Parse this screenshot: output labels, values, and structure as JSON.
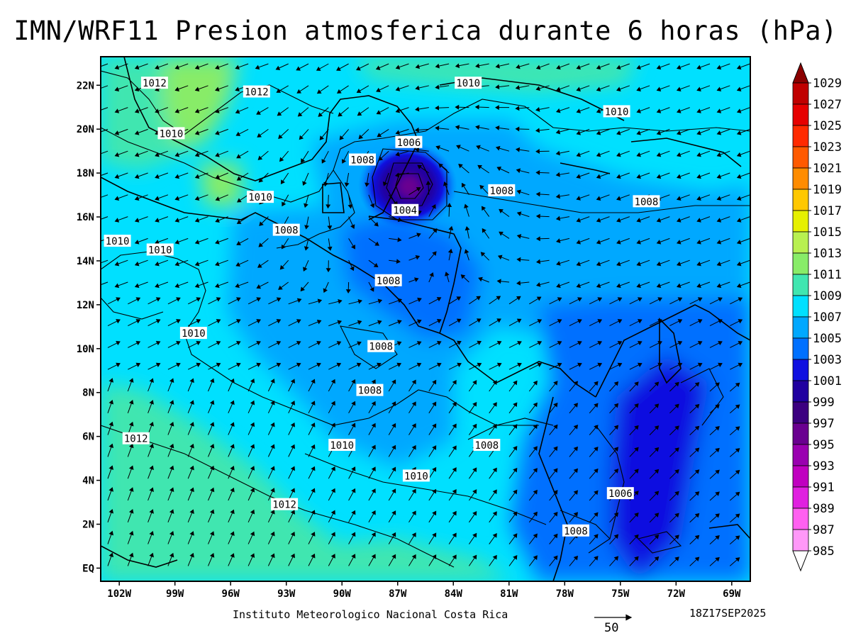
{
  "title": "IMN/WRF11 Presion atmosferica durante 6 horas (hPa)",
  "institution": "Instituto Meteorologico Nacional Costa Rica",
  "timestamp": "18Z17SEP2025",
  "vector_reference": "50",
  "map": {
    "lon_range": [
      -103,
      -68
    ],
    "lat_range": [
      -0.6,
      23.3
    ],
    "lon_ticks": [
      {
        "lon": -102,
        "label": "102W"
      },
      {
        "lon": -99,
        "label": "99W"
      },
      {
        "lon": -96,
        "label": "96W"
      },
      {
        "lon": -93,
        "label": "93W"
      },
      {
        "lon": -90,
        "label": "90W"
      },
      {
        "lon": -87,
        "label": "87W"
      },
      {
        "lon": -84,
        "label": "84W"
      },
      {
        "lon": -81,
        "label": "81W"
      },
      {
        "lon": -78,
        "label": "78W"
      },
      {
        "lon": -75,
        "label": "75W"
      },
      {
        "lon": -72,
        "label": "72W"
      },
      {
        "lon": -69,
        "label": "69W"
      }
    ],
    "lat_ticks": [
      {
        "lat": 22,
        "label": "22N"
      },
      {
        "lat": 20,
        "label": "20N"
      },
      {
        "lat": 18,
        "label": "18N"
      },
      {
        "lat": 16,
        "label": "16N"
      },
      {
        "lat": 14,
        "label": "14N"
      },
      {
        "lat": 12,
        "label": "12N"
      },
      {
        "lat": 10,
        "label": "10N"
      },
      {
        "lat": 8,
        "label": "8N"
      },
      {
        "lat": 6,
        "label": "6N"
      },
      {
        "lat": 4,
        "label": "4N"
      },
      {
        "lat": 2,
        "label": "2N"
      },
      {
        "lat": 0,
        "label": "EQ"
      }
    ],
    "pressure_min": {
      "lon": -86.5,
      "lat": 17.4,
      "value_hpa": 993
    },
    "contour_labels": [
      {
        "text": "1012",
        "lon": -100.1,
        "lat": 22.1
      },
      {
        "text": "1012",
        "lon": -94.6,
        "lat": 21.7
      },
      {
        "text": "1010",
        "lon": -83.2,
        "lat": 22.1
      },
      {
        "text": "1010",
        "lon": -75.2,
        "lat": 20.8
      },
      {
        "text": "1010",
        "lon": -99.2,
        "lat": 19.8
      },
      {
        "text": "1006",
        "lon": -86.4,
        "lat": 19.4
      },
      {
        "text": "1008",
        "lon": -88.9,
        "lat": 18.6
      },
      {
        "text": "1008",
        "lon": -81.4,
        "lat": 17.2
      },
      {
        "text": "1008",
        "lon": -73.6,
        "lat": 16.7
      },
      {
        "text": "1010",
        "lon": -94.4,
        "lat": 16.9
      },
      {
        "text": "1004",
        "lon": -86.6,
        "lat": 16.3
      },
      {
        "text": "1008",
        "lon": -93.0,
        "lat": 15.4
      },
      {
        "text": "1010",
        "lon": -102.1,
        "lat": 14.9
      },
      {
        "text": "1010",
        "lon": -99.8,
        "lat": 14.5
      },
      {
        "text": "1008",
        "lon": -87.5,
        "lat": 13.1
      },
      {
        "text": "1010",
        "lon": -98.0,
        "lat": 10.7
      },
      {
        "text": "1008",
        "lon": -87.9,
        "lat": 10.1
      },
      {
        "text": "1008",
        "lon": -88.5,
        "lat": 8.1
      },
      {
        "text": "1012",
        "lon": -101.1,
        "lat": 5.9
      },
      {
        "text": "1010",
        "lon": -90.0,
        "lat": 5.6
      },
      {
        "text": "1008",
        "lon": -82.2,
        "lat": 5.6
      },
      {
        "text": "1010",
        "lon": -86.0,
        "lat": 4.2
      },
      {
        "text": "1012",
        "lon": -93.1,
        "lat": 2.9
      },
      {
        "text": "1006",
        "lon": -75.0,
        "lat": 3.4
      },
      {
        "text": "1008",
        "lon": -77.4,
        "lat": 1.7
      }
    ]
  },
  "colorbar": {
    "levels": [
      "1029",
      "1027",
      "1025",
      "1023",
      "1021",
      "1019",
      "1017",
      "1015",
      "1013",
      "1011",
      "1009",
      "1007",
      "1005",
      "1003",
      "1001",
      "999",
      "997",
      "995",
      "993",
      "991",
      "989",
      "987",
      "985"
    ],
    "colors": [
      "#8b0000",
      "#c00000",
      "#e60000",
      "#ff2a00",
      "#ff5a00",
      "#ff8c00",
      "#ffc800",
      "#e6f000",
      "#b8f050",
      "#88ec68",
      "#40e6b0",
      "#00e0ff",
      "#00a8ff",
      "#0070ff",
      "#1010e0",
      "#2000a0",
      "#3c0080",
      "#6a0090",
      "#9a00b0",
      "#c000c0",
      "#e020e0",
      "#ff60f0",
      "#ff98f8",
      "#ffc8fc"
    ]
  }
}
